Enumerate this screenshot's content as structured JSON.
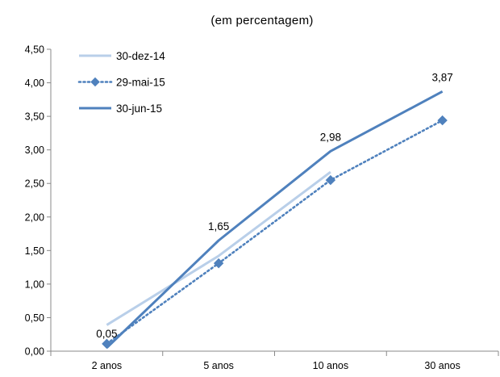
{
  "chart_data": {
    "type": "line",
    "title": "",
    "subtitle": "(em percentagem)",
    "xlabel": "",
    "ylabel": "",
    "categories": [
      "2 anos",
      "5 anos",
      "10 anos",
      "30 anos"
    ],
    "ylim": [
      0,
      4.5
    ],
    "yticks": [
      0,
      0.5,
      1.0,
      1.5,
      2.0,
      2.5,
      3.0,
      3.5,
      4.0,
      4.5
    ],
    "ytick_labels": [
      "0,00",
      "0,50",
      "1,00",
      "1,50",
      "2,00",
      "2,50",
      "3,00",
      "3,50",
      "4,00",
      "4,50"
    ],
    "grid": false,
    "legend_position": "top-left",
    "series": [
      {
        "name": "30-dez-14",
        "values": [
          0.39,
          1.42,
          2.67,
          null
        ],
        "color": "#b9cfe9",
        "style": "solid",
        "marker": "none"
      },
      {
        "name": "29-mai-15",
        "values": [
          0.11,
          1.31,
          2.55,
          3.44
        ],
        "color": "#4f81bd",
        "style": "dotted",
        "marker": "diamond"
      },
      {
        "name": "30-jun-15",
        "values": [
          0.05,
          1.65,
          2.98,
          3.87
        ],
        "color": "#4f81bd",
        "style": "solid",
        "marker": "none"
      }
    ],
    "data_labels": [
      {
        "series": "30-jun-15",
        "index": 0,
        "text": "0,05"
      },
      {
        "series": "30-jun-15",
        "index": 1,
        "text": "1,65"
      },
      {
        "series": "30-jun-15",
        "index": 2,
        "text": "2,98"
      },
      {
        "series": "30-jun-15",
        "index": 3,
        "text": "3,87"
      }
    ]
  }
}
